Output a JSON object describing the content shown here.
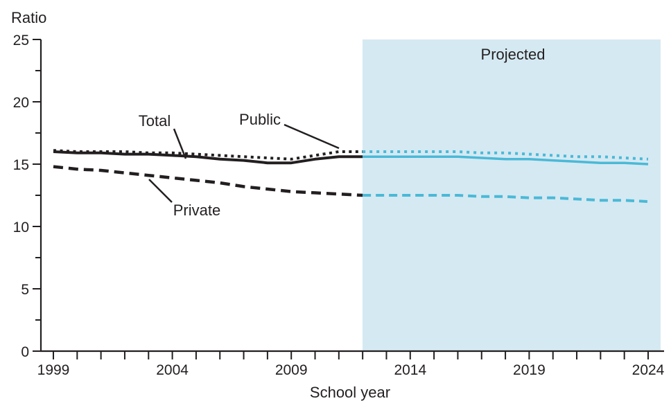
{
  "chart_data": {
    "type": "line",
    "title": "",
    "ylabel": "Ratio",
    "xlabel": "School year",
    "ylim": [
      0,
      25
    ],
    "y_major_ticks": [
      0,
      5,
      10,
      15,
      20,
      25
    ],
    "y_minor_ticks": [
      2.5,
      7.5,
      12.5,
      17.5,
      22.5
    ],
    "x_range": [
      1999,
      2024
    ],
    "x_tick_step": 1,
    "x_labeled_ticks": [
      1999,
      2004,
      2009,
      2014,
      2019,
      2024
    ],
    "grid": "off",
    "legend_position": "inline-annotations",
    "colors": {
      "historical_line": "#231f20",
      "projected_line": "#4ab9d7",
      "projected_fill": "#d5e9f2",
      "text": "#231f20"
    },
    "projection": {
      "label": "Projected",
      "start_year": 2012
    },
    "years": [
      1999,
      2000,
      2001,
      2002,
      2003,
      2004,
      2005,
      2006,
      2007,
      2008,
      2009,
      2010,
      2011,
      2012,
      2013,
      2014,
      2015,
      2016,
      2017,
      2018,
      2019,
      2020,
      2021,
      2022,
      2023,
      2024
    ],
    "series": [
      {
        "name": "Public",
        "style": "dotted",
        "values": [
          16.1,
          16.0,
          16.0,
          16.0,
          15.9,
          15.9,
          15.8,
          15.7,
          15.6,
          15.5,
          15.4,
          15.7,
          16.0,
          16.0,
          16.0,
          16.0,
          16.0,
          16.0,
          15.9,
          15.9,
          15.8,
          15.7,
          15.6,
          15.6,
          15.5,
          15.4
        ]
      },
      {
        "name": "Total",
        "style": "solid",
        "values": [
          16.0,
          15.9,
          15.9,
          15.8,
          15.8,
          15.7,
          15.6,
          15.4,
          15.3,
          15.1,
          15.1,
          15.4,
          15.6,
          15.6,
          15.6,
          15.6,
          15.6,
          15.6,
          15.5,
          15.4,
          15.4,
          15.3,
          15.2,
          15.1,
          15.1,
          15.0
        ]
      },
      {
        "name": "Private",
        "style": "dashed",
        "values": [
          14.8,
          14.6,
          14.5,
          14.3,
          14.1,
          13.9,
          13.7,
          13.5,
          13.2,
          13.0,
          12.8,
          12.7,
          12.6,
          12.5,
          12.5,
          12.5,
          12.5,
          12.5,
          12.4,
          12.4,
          12.3,
          12.3,
          12.2,
          12.1,
          12.1,
          12.0
        ]
      }
    ],
    "annotations": [
      {
        "text": "Total"
      },
      {
        "text": "Public"
      },
      {
        "text": "Private"
      }
    ]
  }
}
